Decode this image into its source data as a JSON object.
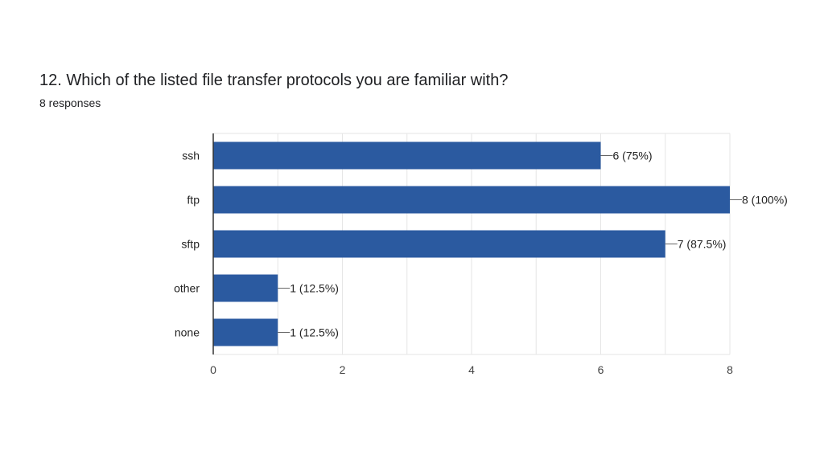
{
  "question": {
    "title": "12. Which of the listed file transfer protocols you are familiar with?",
    "responses": "8 responses"
  },
  "colors": {
    "bar": "#2b5aa0",
    "grid": "#e6e6e6",
    "axis": "#333333",
    "leader": "#666666"
  },
  "chart_data": {
    "type": "bar",
    "orientation": "horizontal",
    "categories": [
      "ssh",
      "ftp",
      "sftp",
      "other",
      "none"
    ],
    "values": [
      6,
      8,
      7,
      1,
      1
    ],
    "value_labels": [
      "6 (75%)",
      "8 (100%)",
      "7 (87.5%)",
      "1 (12.5%)",
      "1 (12.5%)"
    ],
    "xlim": [
      0,
      8
    ],
    "xticks": [
      0,
      2,
      4,
      6,
      8
    ],
    "grid": true,
    "legend": "none"
  }
}
